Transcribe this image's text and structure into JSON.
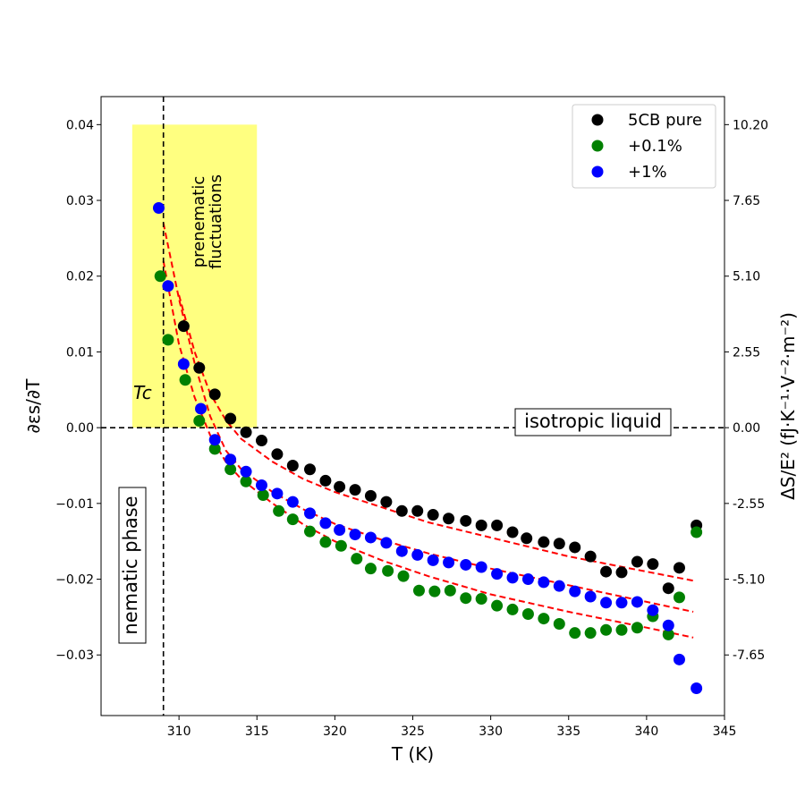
{
  "chart_data": {
    "type": "scatter",
    "xlabel": "T (K)",
    "ylabel_left": "∂εs/∂T",
    "ylabel_right": "ΔS/E² (fJ·K⁻¹·V⁻²·m⁻²)",
    "xlim": [
      305,
      345
    ],
    "ylim": [
      -0.038,
      0.0437
    ],
    "x_ticks": [
      310,
      315,
      320,
      325,
      330,
      335,
      340,
      345
    ],
    "y_ticks_left": [
      -0.03,
      -0.02,
      -0.01,
      0.0,
      0.01,
      0.02,
      0.03,
      0.04
    ],
    "y_tick_labels_left": [
      "−0.03",
      "−0.02",
      "−0.01",
      "0.00",
      "0.01",
      "0.02",
      "0.03",
      "0.04"
    ],
    "y_ticks_right": [
      {
        "value": 0.04,
        "label": "10.20"
      },
      {
        "value": 0.03,
        "label": "7.65"
      },
      {
        "value": 0.02,
        "label": "5.10"
      },
      {
        "value": 0.01,
        "label": "2.55"
      },
      {
        "value": 0.0,
        "label": "0.00"
      },
      {
        "value": -0.01,
        "label": "-2.55"
      },
      {
        "value": -0.02,
        "label": "-5.10"
      },
      {
        "value": -0.03,
        "label": "-7.65"
      }
    ],
    "tc": 309.0,
    "shaded_region": {
      "x": [
        307,
        315
      ],
      "y": [
        0,
        0.04
      ],
      "color": "#ffff80"
    },
    "annotations": {
      "prenematic_line1": "prenematic",
      "prenematic_line2": "fluctuations",
      "tc_label": "Tc",
      "isotropic": "isotropic liquid",
      "nematic": "nematic phase"
    },
    "legend": {
      "position": "top-right"
    },
    "series": [
      {
        "name": "5CB pure",
        "color": "#000000",
        "points": [
          [
            310.3,
            0.0134
          ],
          [
            311.3,
            0.0079
          ],
          [
            312.3,
            0.0044
          ],
          [
            313.3,
            0.0012
          ],
          [
            314.3,
            -0.0006
          ],
          [
            315.3,
            -0.0017
          ],
          [
            316.3,
            -0.0035
          ],
          [
            317.3,
            -0.005
          ],
          [
            318.4,
            -0.0055
          ],
          [
            319.4,
            -0.007
          ],
          [
            320.3,
            -0.0078
          ],
          [
            321.3,
            -0.0082
          ],
          [
            322.3,
            -0.009
          ],
          [
            323.3,
            -0.0098
          ],
          [
            324.3,
            -0.011
          ],
          [
            325.3,
            -0.011
          ],
          [
            326.3,
            -0.0115
          ],
          [
            327.3,
            -0.012
          ],
          [
            328.4,
            -0.0123
          ],
          [
            329.4,
            -0.0129
          ],
          [
            330.4,
            -0.0129
          ],
          [
            331.4,
            -0.0138
          ],
          [
            332.3,
            -0.0146
          ],
          [
            333.4,
            -0.0151
          ],
          [
            334.4,
            -0.0153
          ],
          [
            335.4,
            -0.0158
          ],
          [
            336.4,
            -0.017
          ],
          [
            337.4,
            -0.019
          ],
          [
            338.4,
            -0.0191
          ],
          [
            339.4,
            -0.0177
          ],
          [
            340.4,
            -0.018
          ],
          [
            341.4,
            -0.0212
          ],
          [
            342.1,
            -0.0185
          ],
          [
            343.2,
            -0.0129
          ]
        ]
      },
      {
        "name": "+0.1%",
        "color": "#008000",
        "points": [
          [
            308.8,
            0.02
          ],
          [
            309.3,
            0.0116
          ],
          [
            310.4,
            0.0063
          ],
          [
            311.3,
            0.0009
          ],
          [
            312.3,
            -0.0028
          ],
          [
            313.3,
            -0.0055
          ],
          [
            314.3,
            -0.0071
          ],
          [
            315.4,
            -0.0089
          ],
          [
            316.4,
            -0.011
          ],
          [
            317.3,
            -0.0121
          ],
          [
            318.4,
            -0.0137
          ],
          [
            319.4,
            -0.0151
          ],
          [
            320.4,
            -0.0156
          ],
          [
            321.4,
            -0.0173
          ],
          [
            322.3,
            -0.0186
          ],
          [
            323.4,
            -0.0189
          ],
          [
            324.4,
            -0.0196
          ],
          [
            325.4,
            -0.0215
          ],
          [
            326.4,
            -0.0216
          ],
          [
            327.4,
            -0.0215
          ],
          [
            328.4,
            -0.0225
          ],
          [
            329.4,
            -0.0226
          ],
          [
            330.4,
            -0.0235
          ],
          [
            331.4,
            -0.024
          ],
          [
            332.4,
            -0.0246
          ],
          [
            333.4,
            -0.0252
          ],
          [
            334.4,
            -0.0259
          ],
          [
            335.4,
            -0.0271
          ],
          [
            336.4,
            -0.0271
          ],
          [
            337.4,
            -0.0267
          ],
          [
            338.4,
            -0.0267
          ],
          [
            339.4,
            -0.0264
          ],
          [
            340.4,
            -0.0249
          ],
          [
            341.4,
            -0.0273
          ],
          [
            342.1,
            -0.0224
          ],
          [
            343.2,
            -0.0138
          ]
        ]
      },
      {
        "name": "+1%",
        "color": "#0000ff",
        "points": [
          [
            308.7,
            0.029
          ],
          [
            309.3,
            0.0187
          ],
          [
            310.3,
            0.0084
          ],
          [
            311.4,
            0.0025
          ],
          [
            312.3,
            -0.0016
          ],
          [
            313.3,
            -0.0042
          ],
          [
            314.3,
            -0.0058
          ],
          [
            315.3,
            -0.0076
          ],
          [
            316.3,
            -0.0087
          ],
          [
            317.3,
            -0.0098
          ],
          [
            318.4,
            -0.0113
          ],
          [
            319.4,
            -0.0126
          ],
          [
            320.3,
            -0.0135
          ],
          [
            321.3,
            -0.0141
          ],
          [
            322.3,
            -0.0145
          ],
          [
            323.3,
            -0.0152
          ],
          [
            324.3,
            -0.0163
          ],
          [
            325.3,
            -0.0168
          ],
          [
            326.3,
            -0.0175
          ],
          [
            327.3,
            -0.0178
          ],
          [
            328.4,
            -0.0181
          ],
          [
            329.4,
            -0.0184
          ],
          [
            330.4,
            -0.0193
          ],
          [
            331.4,
            -0.0198
          ],
          [
            332.4,
            -0.02
          ],
          [
            333.4,
            -0.0204
          ],
          [
            334.4,
            -0.0209
          ],
          [
            335.4,
            -0.0216
          ],
          [
            336.4,
            -0.0223
          ],
          [
            337.4,
            -0.0231
          ],
          [
            338.4,
            -0.0231
          ],
          [
            339.4,
            -0.023
          ],
          [
            340.4,
            -0.0241
          ],
          [
            341.4,
            -0.0261
          ],
          [
            342.1,
            -0.0306
          ],
          [
            343.2,
            -0.0344
          ]
        ]
      }
    ],
    "fit_curves": {
      "color": "#ff0000",
      "style": "dashed",
      "curves": [
        {
          "for": "5CB pure",
          "points": [
            [
              310.0,
              0.0175
            ],
            [
              311.0,
              0.01
            ],
            [
              312.0,
              0.0045
            ],
            [
              313.0,
              0.001
            ],
            [
              314.0,
              -0.0015
            ],
            [
              316.0,
              -0.0045
            ],
            [
              318.0,
              -0.0068
            ],
            [
              320.0,
              -0.0085
            ],
            [
              323.0,
              -0.0105
            ],
            [
              326.0,
              -0.0125
            ],
            [
              330.0,
              -0.0145
            ],
            [
              335.0,
              -0.017
            ],
            [
              340.0,
              -0.019
            ],
            [
              343.0,
              -0.0202
            ]
          ]
        },
        {
          "for": "+1%",
          "points": [
            [
              309.0,
              0.027
            ],
            [
              310.0,
              0.017
            ],
            [
              311.0,
              0.0085
            ],
            [
              312.0,
              0.0015
            ],
            [
              313.0,
              -0.003
            ],
            [
              314.0,
              -0.0055
            ],
            [
              316.0,
              -0.0085
            ],
            [
              318.0,
              -0.0108
            ],
            [
              320.0,
              -0.0127
            ],
            [
              323.0,
              -0.0148
            ],
            [
              326.0,
              -0.0166
            ],
            [
              330.0,
              -0.0186
            ],
            [
              335.0,
              -0.0208
            ],
            [
              340.0,
              -0.023
            ],
            [
              343.0,
              -0.0243
            ]
          ]
        },
        {
          "for": "+0.1%",
          "points": [
            [
              309.0,
              0.022
            ],
            [
              310.0,
              0.011
            ],
            [
              311.0,
              0.004
            ],
            [
              312.0,
              -0.001
            ],
            [
              313.0,
              -0.0045
            ],
            [
              314.0,
              -0.0068
            ],
            [
              316.0,
              -0.01
            ],
            [
              318.0,
              -0.0128
            ],
            [
              320.0,
              -0.015
            ],
            [
              323.0,
              -0.0175
            ],
            [
              326.0,
              -0.0196
            ],
            [
              330.0,
              -0.022
            ],
            [
              335.0,
              -0.0243
            ],
            [
              340.0,
              -0.0264
            ],
            [
              343.0,
              -0.0277
            ]
          ]
        }
      ]
    }
  }
}
